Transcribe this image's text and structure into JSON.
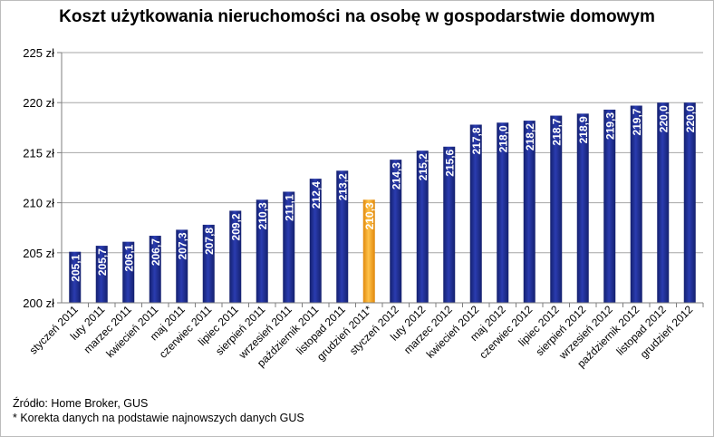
{
  "chart_data": {
    "type": "bar",
    "title": "Koszt użytkowania nieruchomości na osobę w gospodarstwie domowym",
    "xlabel": "",
    "ylabel": "",
    "categories": [
      "styczeń 2011",
      "luty 2011",
      "marzec 2011",
      "kwiecień 2011",
      "maj 2011",
      "czerwiec 2011",
      "lipiec 2011",
      "sierpień 2011",
      "wrzesień 2011",
      "październik 2011",
      "listopad 2011",
      "grudzień 2011*",
      "styczeń 2012",
      "luty 2012",
      "marzec 2012",
      "kwiecień 2012",
      "maj 2012",
      "czerwiec 2012",
      "lipiec 2012",
      "sierpień 2012",
      "wrzesień 2012",
      "październik 2012",
      "listopad 2012",
      "grudzień 2012"
    ],
    "values": [
      205.1,
      205.7,
      206.1,
      206.7,
      207.3,
      207.8,
      209.2,
      210.3,
      211.1,
      212.4,
      213.2,
      210.3,
      214.3,
      215.2,
      215.6,
      217.8,
      218.0,
      218.2,
      218.7,
      218.9,
      219.3,
      219.7,
      220.0,
      220.0
    ],
    "data_labels": [
      "205,1",
      "205,7",
      "206,1",
      "206,7",
      "207,3",
      "207,8",
      "209,2",
      "210,3",
      "211,1",
      "212,4",
      "213,2",
      "210,3",
      "214,3",
      "215,2",
      "215,6",
      "217,8",
      "218,0",
      "218,2",
      "218,7",
      "218,9",
      "219,3",
      "219,7",
      "220,0",
      "220,0"
    ],
    "ylim": [
      200,
      225
    ],
    "yticks": [
      200,
      205,
      210,
      215,
      220,
      225
    ],
    "ytick_labels": [
      "200 zł",
      "205 zł",
      "210 zł",
      "215 zł",
      "220 zł",
      "225 zł"
    ],
    "grid": true,
    "legend": "none",
    "highlight_index": 11,
    "colors": {
      "bar": "#1f2f96",
      "highlight": "#f7a21b",
      "grid": "#a6a6a6",
      "plot_bg": "#ffffff"
    }
  },
  "source_text": "Źródło: Home Broker, GUS",
  "footnote_text": "* Korekta danych na podstawie najnowszych danych GUS"
}
